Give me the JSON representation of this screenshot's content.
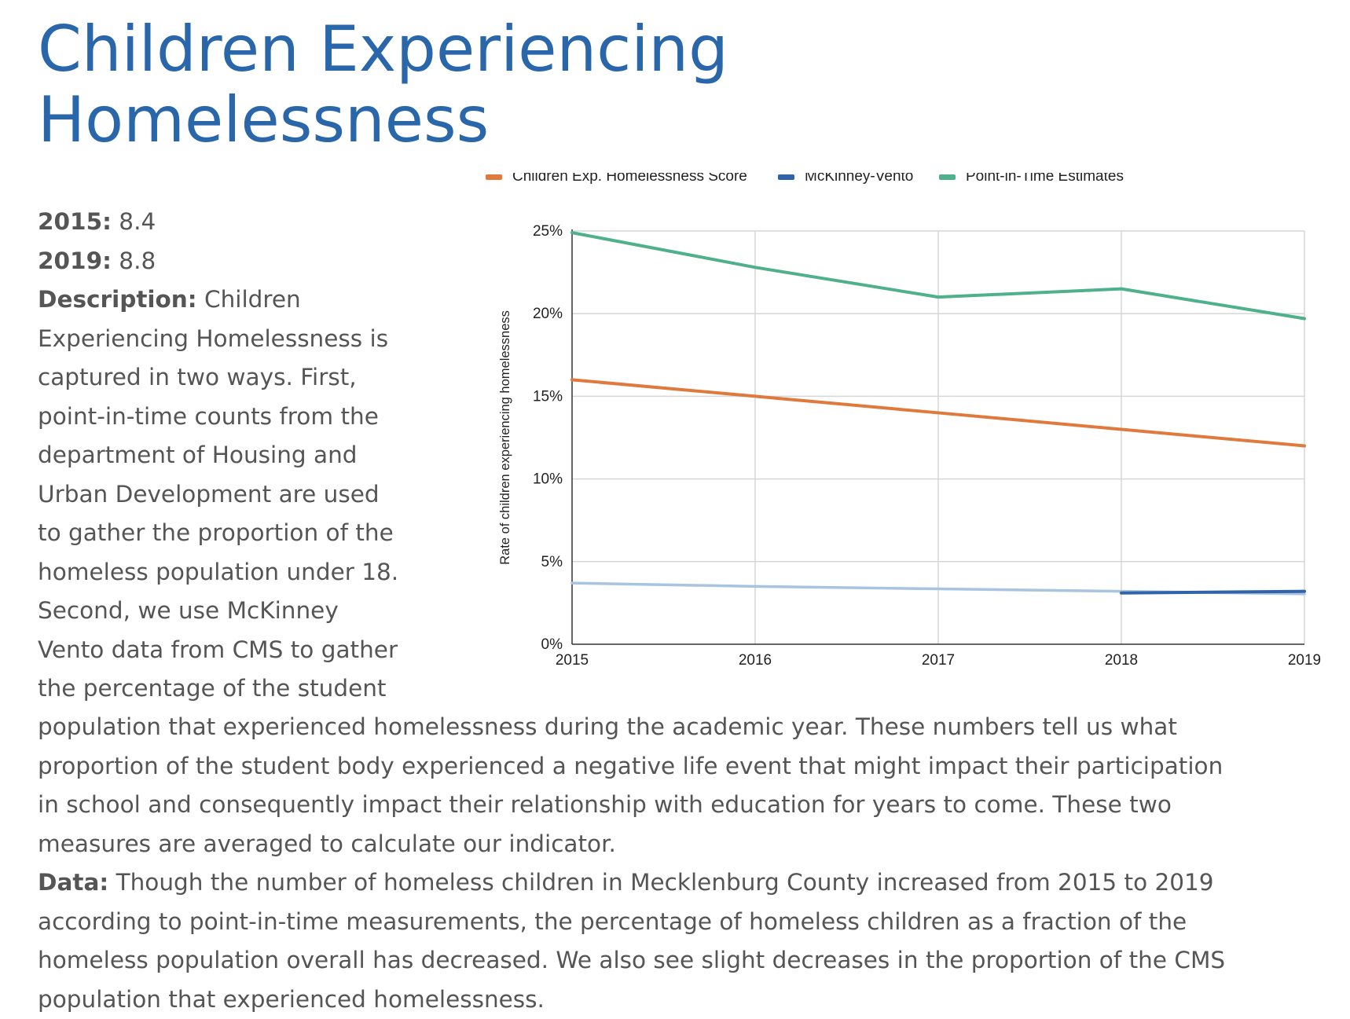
{
  "heading": {
    "line1": "Children Experiencing",
    "line2": "Homelessness"
  },
  "stats": {
    "y2015_label": "2015:",
    "y2015_value": "8.4",
    "y2019_label": "2019:",
    "y2019_value": "8.8"
  },
  "description": {
    "label": "Description:",
    "lines_left": [
      "Children",
      "Experiencing Homelessness is",
      "captured in two ways. First,",
      "point-in-time counts from the",
      "department of Housing and",
      "Urban Development are used",
      "to gather the proportion of the",
      "homeless population under 18.",
      "Second, we use McKinney",
      "Vento data from CMS to gather",
      "the percentage of the student"
    ],
    "lines_full": [
      "population that experienced homelessness during the academic year. These numbers tell us what",
      "proportion of the student body experienced a negative life event that might impact their participation",
      "in school and consequently impact their relationship with education for years to come. These two",
      "measures are averaged to calculate our indicator."
    ]
  },
  "data_section": {
    "label": "Data:",
    "first_line": "Though the number of homeless children in Mecklenburg County increased from 2015 to 2019",
    "lines": [
      "according to point-in-time measurements, the percentage of homeless children as a fraction of the",
      "homeless population overall has decreased. We also see slight decreases in the proportion of the CMS",
      "population that experienced homelessness."
    ]
  },
  "chart_data": {
    "type": "line",
    "title": "",
    "xlabel": "",
    "ylabel": "Rate of children experiencing homelessness",
    "x": [
      "2015",
      "2016",
      "2017",
      "2018",
      "2019"
    ],
    "ylim": [
      0,
      25
    ],
    "yticks": [
      "0%",
      "5%",
      "10%",
      "15%",
      "20%",
      "25%"
    ],
    "ytick_values": [
      0,
      5,
      10,
      15,
      20,
      25
    ],
    "grid": true,
    "legend_position": "top",
    "series": [
      {
        "name": "Children Exp. Homelessness Score",
        "color": "#e07a3c",
        "values": [
          16.0,
          15.0,
          14.0,
          13.0,
          12.0
        ]
      },
      {
        "name": "McKinney-Vento",
        "color": "#2f64aa",
        "values": [
          null,
          null,
          null,
          3.1,
          3.2
        ]
      },
      {
        "name": "Point-in-Time Estimates",
        "color": "#4fb08c",
        "values": [
          24.9,
          22.8,
          21.0,
          21.5,
          19.7
        ]
      }
    ],
    "faded_series": {
      "color": "#a9c4e0",
      "values": [
        3.7,
        3.5,
        3.35,
        3.2,
        3.05
      ]
    }
  }
}
